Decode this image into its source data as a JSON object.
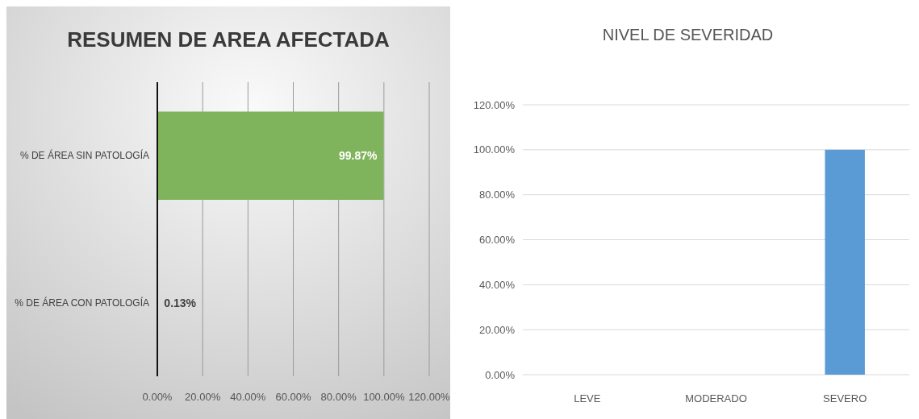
{
  "chart_data": [
    {
      "type": "bar",
      "title": "RESUMEN DE AREA AFECTADA",
      "orientation": "horizontal",
      "categories": [
        "% DE ÁREA SIN PATOLOGÍA",
        "% DE ÁREA CON PATOLOGÍA"
      ],
      "values": [
        99.87,
        0.13
      ],
      "color": "#7fb45d",
      "value_labels": [
        "99.87%",
        "0.13%"
      ],
      "xlim": [
        0,
        120
      ],
      "xticks": [
        {
          "value": 0,
          "label": "0.00%"
        },
        {
          "value": 20,
          "label": "20.00%"
        },
        {
          "value": 40,
          "label": "40.00%"
        },
        {
          "value": 60,
          "label": "60.00%"
        },
        {
          "value": 80,
          "label": "80.00%"
        },
        {
          "value": 100,
          "label": "100.00%"
        },
        {
          "value": 120,
          "label": "120.00%"
        }
      ],
      "grid": "x"
    },
    {
      "type": "bar",
      "title": "NIVEL DE SEVERIDAD",
      "categories": [
        "LEVE",
        "MODERADO",
        "SEVERO"
      ],
      "values": [
        0,
        0,
        100
      ],
      "color": "#5b9bd5",
      "ylim": [
        0,
        120
      ],
      "yticks": [
        {
          "value": 0,
          "label": "0.00%"
        },
        {
          "value": 20,
          "label": "20.00%"
        },
        {
          "value": 40,
          "label": "40.00%"
        },
        {
          "value": 60,
          "label": "60.00%"
        },
        {
          "value": 80,
          "label": "80.00%"
        },
        {
          "value": 100,
          "label": "100.00%"
        },
        {
          "value": 120,
          "label": "120.00%"
        }
      ],
      "grid": "y"
    }
  ]
}
